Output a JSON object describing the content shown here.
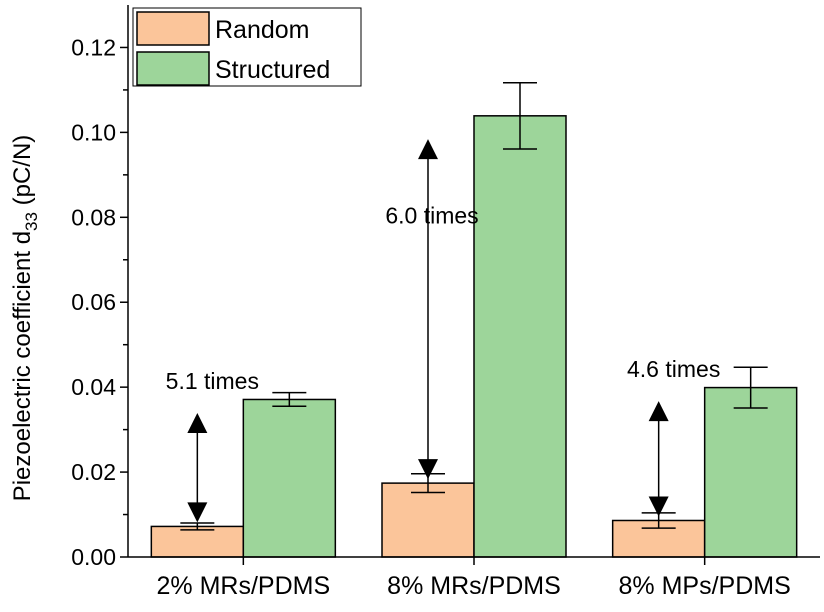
{
  "chart_data": {
    "type": "bar",
    "categories": [
      "2% MRs/PDMS",
      "8% MRs/PDMS",
      "8% MPs/PDMS"
    ],
    "series": [
      {
        "name": "Random",
        "color": "#fbc59a",
        "values": [
          0.0072,
          0.0174,
          0.0086
        ],
        "errors": [
          0.0008,
          0.0022,
          0.0018
        ]
      },
      {
        "name": "Structured",
        "color": "#9dd59a",
        "values": [
          0.0371,
          0.1039,
          0.0399
        ],
        "errors": [
          0.0016,
          0.0078,
          0.0048
        ]
      }
    ],
    "ylabel_main": "Piezoelectric coefficient d",
    "ylabel_sub": "33",
    "ylabel_unit": "(pC/N)",
    "ylim": [
      0,
      0.13
    ],
    "yticks": [
      0.0,
      0.02,
      0.04,
      0.06,
      0.08,
      0.1,
      0.12
    ],
    "ytick_labels": [
      "0.00",
      "0.02",
      "0.04",
      "0.06",
      "0.08",
      "0.10",
      "0.12"
    ],
    "legend_position": "top-left",
    "annotations": [
      {
        "text": "5.1 times",
        "category": 0,
        "arrow_from": 0.0072,
        "arrow_to": 0.0371
      },
      {
        "text": "6.0 times",
        "category": 1,
        "arrow_from": 0.0174,
        "arrow_to": 0.1039
      },
      {
        "text": "4.6 times",
        "category": 2,
        "arrow_from": 0.0086,
        "arrow_to": 0.0399
      }
    ]
  }
}
